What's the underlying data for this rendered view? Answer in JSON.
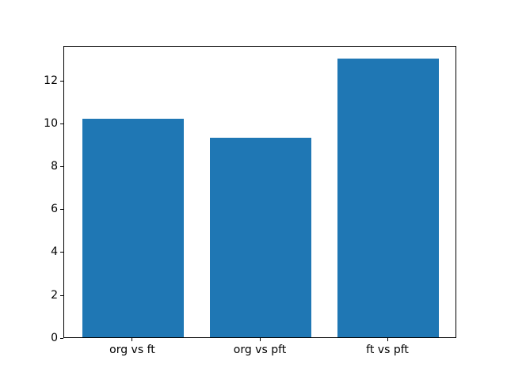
{
  "chart_data": {
    "type": "bar",
    "title": "",
    "xlabel": "",
    "ylabel": "",
    "categories": [
      "org vs ft",
      "org vs pft",
      "ft vs pft"
    ],
    "values": [
      10.2,
      9.3,
      13.0
    ],
    "yticks": [
      0,
      2,
      4,
      6,
      8,
      10,
      12
    ],
    "ylim": [
      0,
      13.65
    ],
    "bar_width_fraction": 0.8,
    "bar_color": "#1f77b4",
    "axes_color": "#000000",
    "background_color": "#ffffff",
    "grid": false,
    "legend": null
  }
}
